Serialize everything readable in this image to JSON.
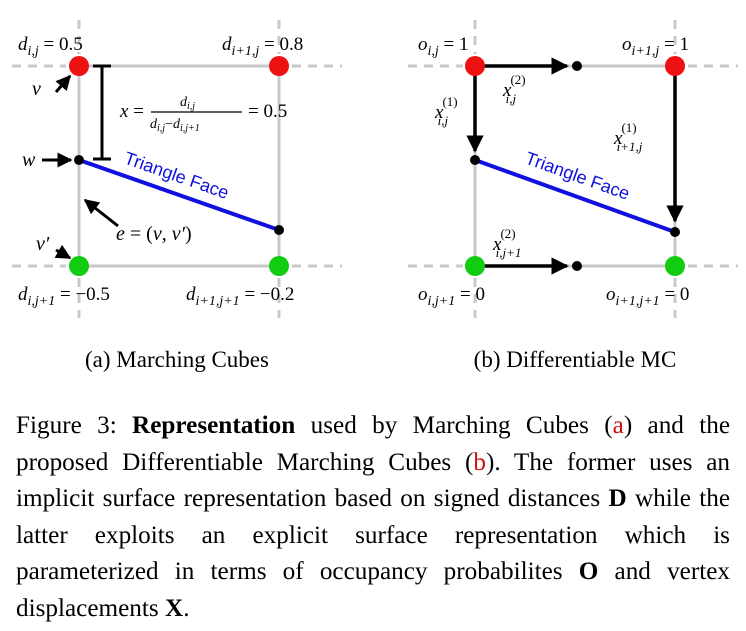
{
  "panel_a": {
    "caption": "(a) Marching Cubes",
    "labels": {
      "d_ij_value": "0.5",
      "d_i1j_value": "0.8",
      "d_ij1_value": "−0.5",
      "d_i1j1_value": "−0.2",
      "x_value": "0.5",
      "triangle_face": "Triangle Face"
    },
    "colors": {
      "positive_corner": "#ee1111",
      "negative_corner": "#11cc11",
      "triangle": "#1010e0",
      "grid": "#c8c8c8"
    }
  },
  "panel_b": {
    "caption": "(b) Differentiable MC",
    "labels": {
      "o_ij_value": "1",
      "o_i1j_value": "1",
      "o_ij1_value": "0",
      "o_i1j1_value": "0",
      "triangle_face": "Triangle Face"
    }
  },
  "caption": {
    "label": "Figure 3:",
    "bold": "Representation",
    "part1": "used by Marching Cubes (",
    "ref_a": "a",
    "part2": ") and the proposed Differentiable Marching Cubes (",
    "ref_b": "b",
    "part3": "). The former uses an implicit surface representation based on signed distances",
    "sym_d": "D",
    "part4": "while the latter exploits an explicit surface representation which is parameterized in terms of occupancy probabilites",
    "sym_o": "O",
    "part5": "and vertex displacements",
    "sym_x": "X",
    "part6": "."
  }
}
